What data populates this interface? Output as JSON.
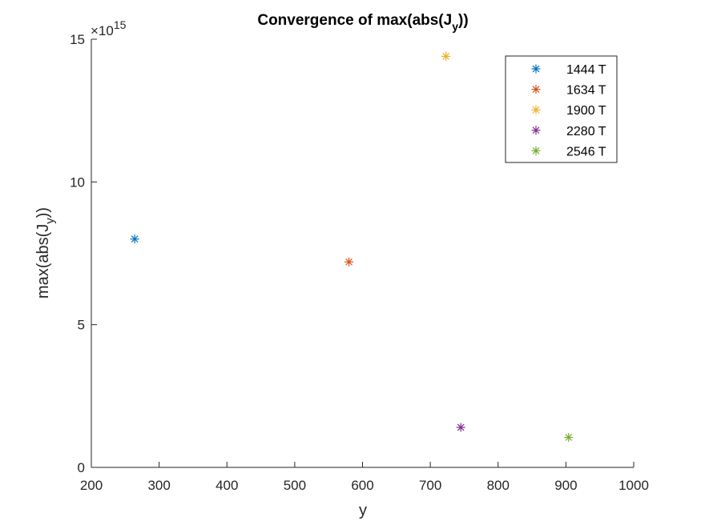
{
  "chart_data": {
    "type": "scatter",
    "title_main": "Convergence of max(abs(J",
    "title_sub": "y",
    "title_end": "))",
    "xlabel": "y",
    "ylabel_main": "max(abs(J",
    "ylabel_sub": "y",
    "ylabel_end": "))",
    "xlim": [
      200,
      1000
    ],
    "ylim": [
      0,
      15
    ],
    "xticks": [
      200,
      300,
      400,
      500,
      600,
      700,
      800,
      900,
      1000
    ],
    "yticks": [
      0,
      5,
      10,
      15
    ],
    "x_tick_labels": [
      "200",
      "300",
      "400",
      "500",
      "600",
      "700",
      "800",
      "900",
      "1000"
    ],
    "y_tick_labels": [
      "0",
      "5",
      "10",
      "15"
    ],
    "y_multiplier_base": "×10",
    "y_multiplier_exp": "15",
    "legend_position": "top-right",
    "marker": "asterisk",
    "series": [
      {
        "name": "1444 T",
        "color": "#0072BD",
        "x": 264,
        "y": 8.0
      },
      {
        "name": "1634 T",
        "color": "#D95319",
        "x": 580,
        "y": 7.2
      },
      {
        "name": "1900 T",
        "color": "#EDB120",
        "x": 723,
        "y": 14.4
      },
      {
        "name": "2280 T",
        "color": "#7E2F8E",
        "x": 745,
        "y": 1.4
      },
      {
        "name": "2546 T",
        "color": "#77AC30",
        "x": 904,
        "y": 1.05
      }
    ]
  }
}
